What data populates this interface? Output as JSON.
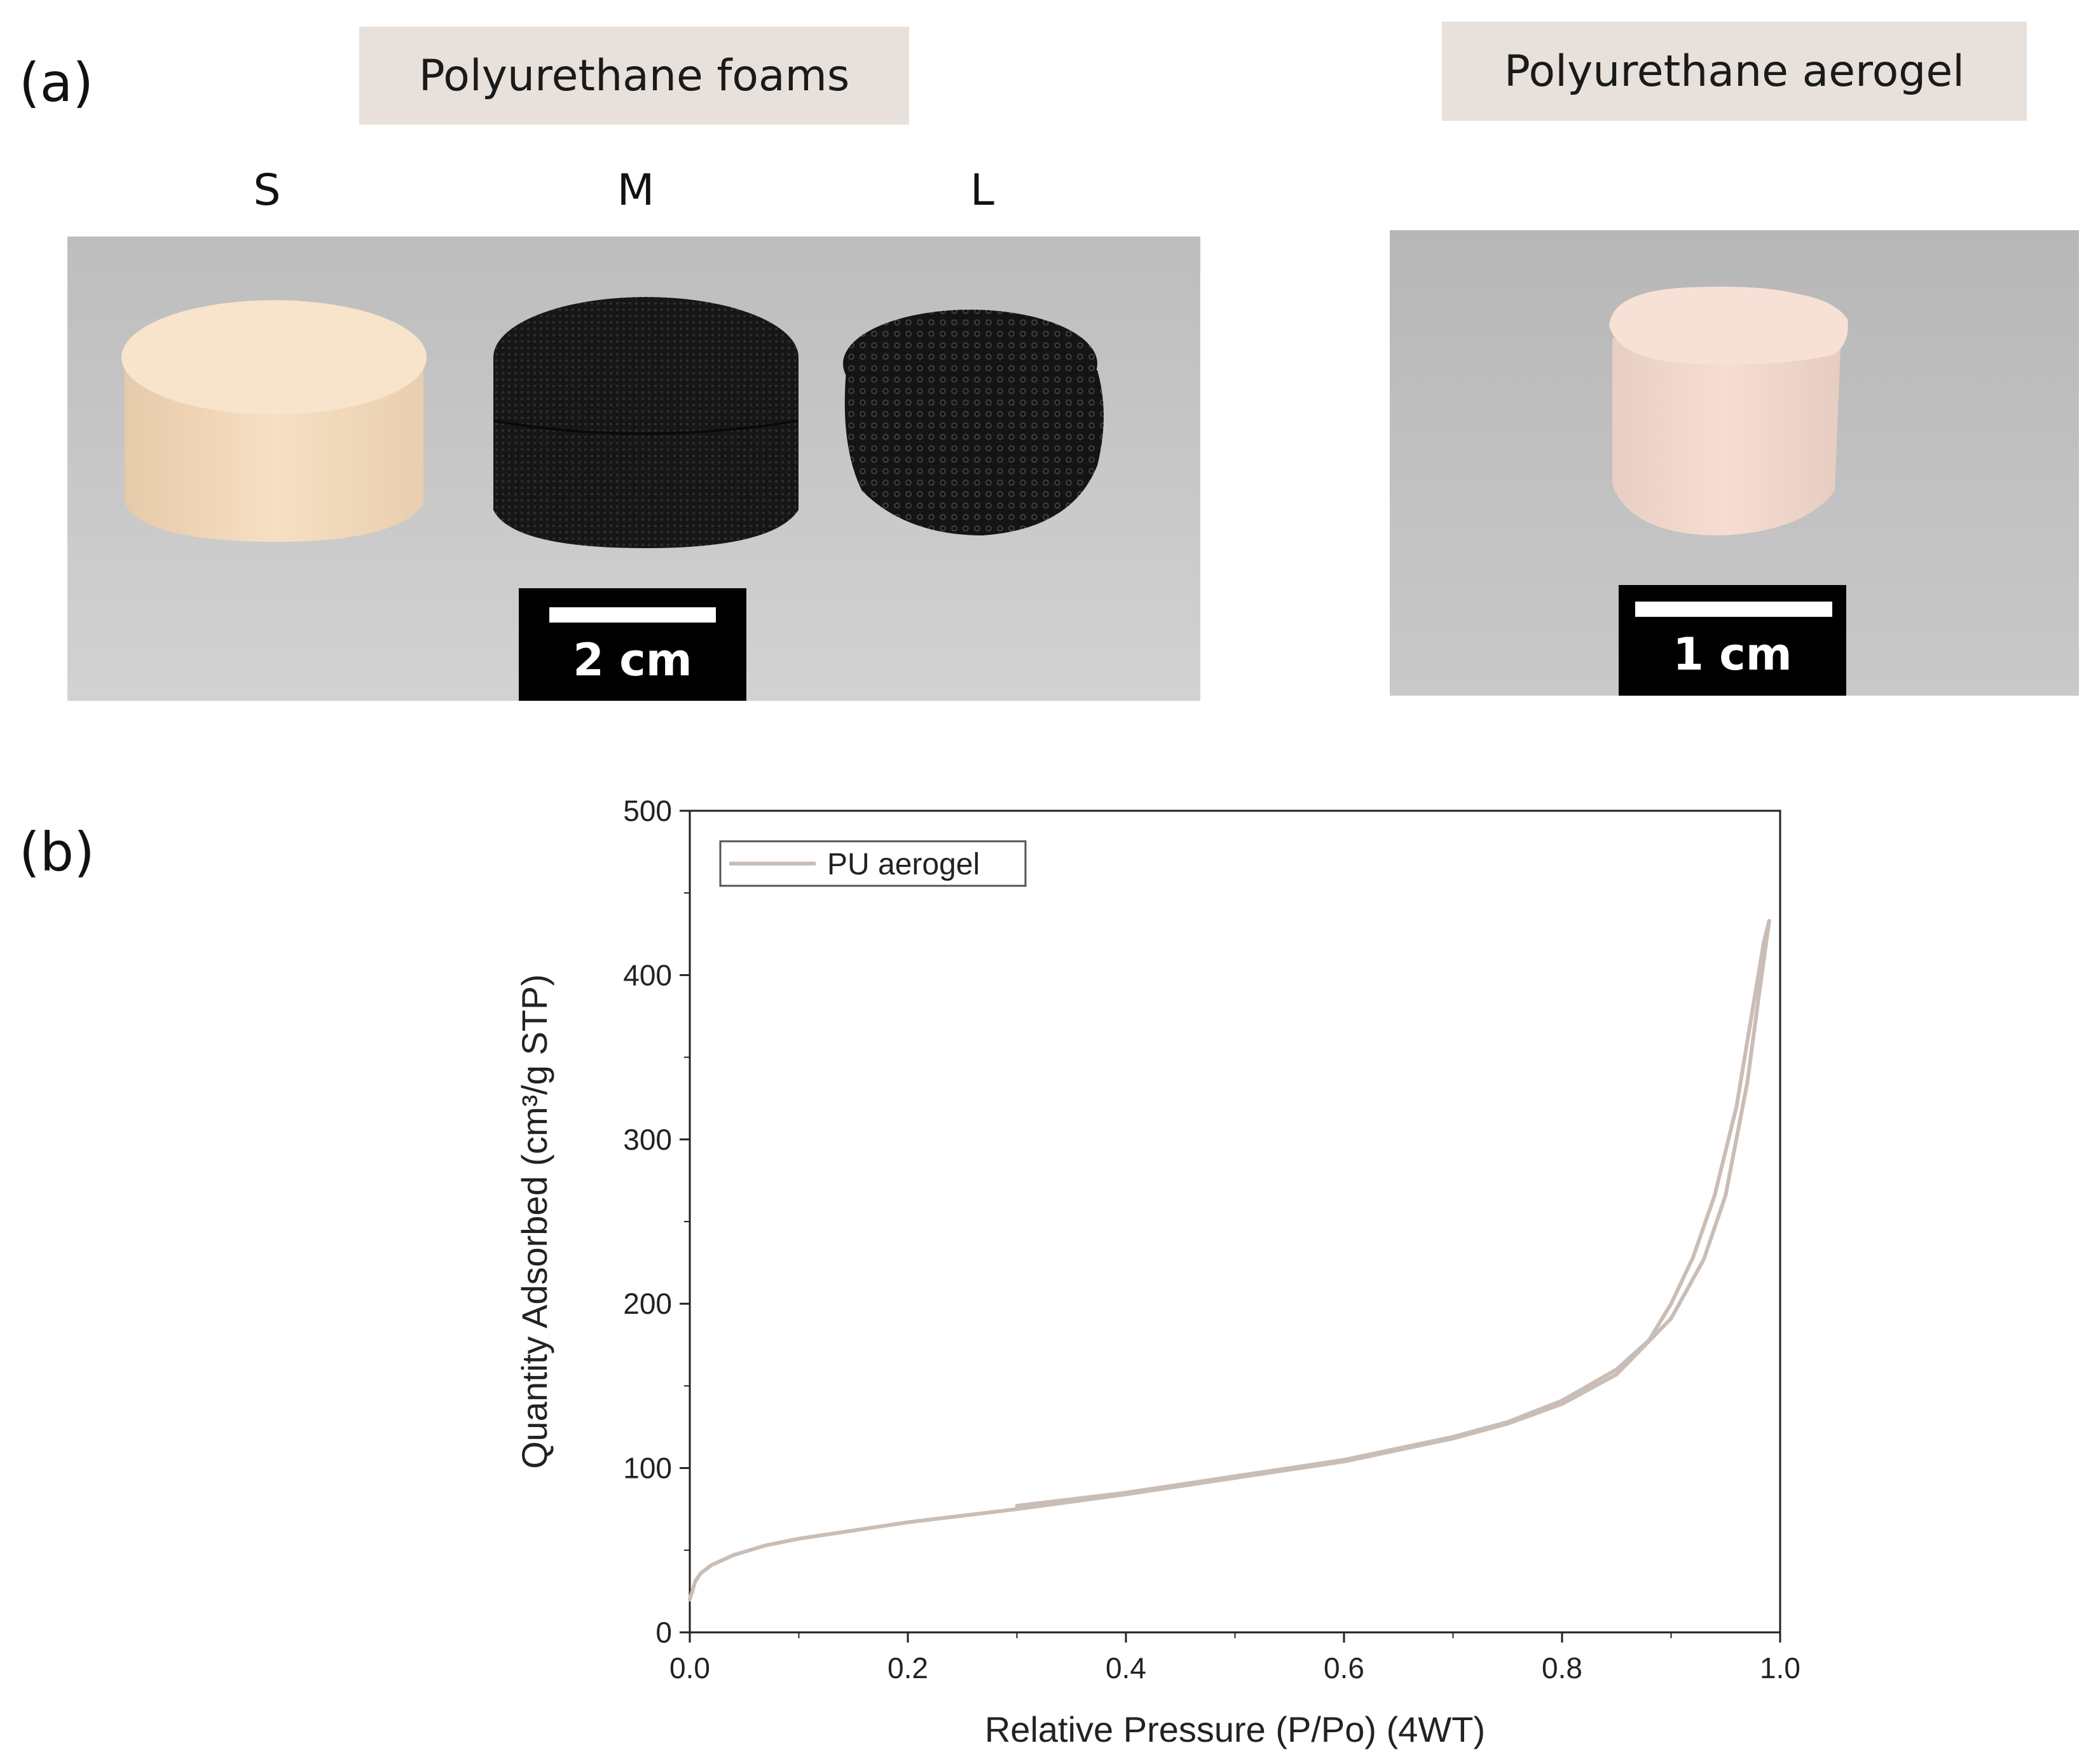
{
  "panel_a": {
    "label": "(a)",
    "foams_title": "Polyurethane foams",
    "aerogel_title": "Polyurethane aerogel",
    "size_labels": [
      "S",
      "M",
      "L"
    ],
    "foams_scalebar": "2 cm",
    "aerogel_scalebar": "1 cm",
    "colors": {
      "title_box": "#e8e1db",
      "photo_bg": "#c4c4c4",
      "foam_s": "#f5dcc0",
      "foam_dark": "#1a1a1a",
      "aerogel": "#f3d9cf"
    }
  },
  "panel_b": {
    "label": "(b)"
  },
  "chart_data": {
    "type": "line",
    "xlabel": "Relative Pressure (P/Po) (4WT)",
    "ylabel": "Quantity Adsorbed (cm³/g STP)",
    "xlim": [
      0.0,
      1.0
    ],
    "ylim": [
      0,
      500
    ],
    "xticks": [
      "0.0",
      "0.2",
      "0.4",
      "0.6",
      "0.8",
      "1.0"
    ],
    "yticks": [
      "0",
      "100",
      "200",
      "300",
      "400",
      "500"
    ],
    "legend": {
      "placement": "top-left",
      "entries": [
        "PU aerogel"
      ]
    },
    "line_color": "#c9bdb5",
    "series": [
      {
        "name": "PU aerogel",
        "segment": "adsorption",
        "x": [
          0.0,
          0.005,
          0.01,
          0.02,
          0.04,
          0.07,
          0.1,
          0.15,
          0.2,
          0.25,
          0.3,
          0.4,
          0.5,
          0.6,
          0.7,
          0.75,
          0.8,
          0.85,
          0.9,
          0.93,
          0.95,
          0.97,
          0.98,
          0.99
        ],
        "y": [
          20,
          31,
          36,
          41,
          47,
          53,
          57,
          62,
          67,
          71,
          75,
          84,
          94,
          104,
          118,
          127,
          139,
          157,
          191,
          227,
          266,
          335,
          385,
          433
        ]
      },
      {
        "name": "PU aerogel",
        "segment": "desorption",
        "x": [
          0.99,
          0.985,
          0.975,
          0.96,
          0.94,
          0.92,
          0.9,
          0.88,
          0.85,
          0.8,
          0.75,
          0.7,
          0.6,
          0.5,
          0.4,
          0.3
        ],
        "y": [
          433,
          420,
          380,
          320,
          266,
          228,
          200,
          178,
          160,
          141,
          128,
          119,
          105,
          95,
          85,
          77
        ]
      }
    ]
  }
}
